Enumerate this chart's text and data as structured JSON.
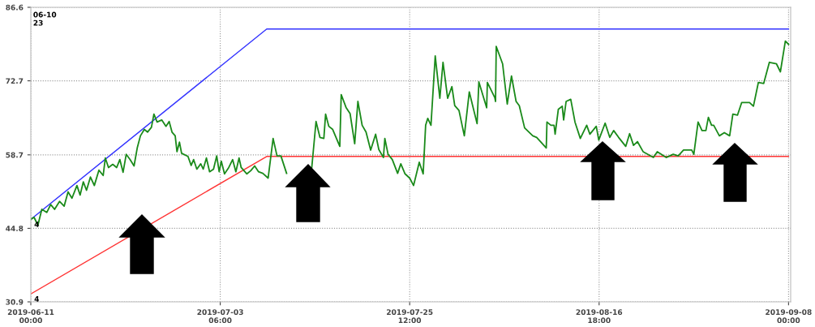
{
  "chart_data": {
    "type": "line",
    "xlim": [
      "2019-06-11T00:00",
      "2019-09-08T06:00"
    ],
    "ylim": [
      30.9,
      86.6
    ],
    "yticks": [
      30.9,
      44.8,
      58.7,
      72.7,
      86.6
    ],
    "xticks": [
      {
        "value": "2019-06-11T00:00",
        "label": "2019-06-11\n00:00"
      },
      {
        "value": "2019-07-03T06:00",
        "label": "2019-07-03\n06:00"
      },
      {
        "value": "2019-07-25T12:00",
        "label": "2019-07-25\n12:00"
      },
      {
        "value": "2019-08-16T18:00",
        "label": "2019-08-16\n18:00"
      },
      {
        "value": "2019-09-08T00:00",
        "label": "2019-09-08\n00:00"
      }
    ],
    "grid": true,
    "line_style": "solid",
    "marker": "none",
    "annotations": [
      "06-10\n23",
      {
        "text": "4",
        "x": "2019-06-11T00:00",
        "y": 46.5
      },
      {
        "text": "4",
        "x": "2019-06-11T00:00",
        "y": 32.4
      }
    ],
    "series": [
      {
        "color": "#3333ff",
        "x": [
          "2019-06-11T00:00",
          "2019-07-08T17:00",
          "2019-09-08T00:00"
        ],
        "values": [
          46.5,
          82.5,
          82.5
        ]
      },
      {
        "color": "#ff3333",
        "x": [
          "2019-06-11T00:00",
          "2019-07-08T17:00",
          "2019-09-08T00:00"
        ],
        "values": [
          32.4,
          58.4,
          58.4
        ]
      },
      {
        "color": "#1a8a1a",
        "x": [
          "2019-06-11T00:00",
          "2019-06-11T09:00",
          "2019-06-11T20:00",
          "2019-06-12T07:00",
          "2019-06-12T21:00",
          "2019-06-13T08:00",
          "2019-06-13T19:00",
          "2019-06-14T09:00",
          "2019-06-14T22:00",
          "2019-06-15T09:00",
          "2019-06-15T20:00",
          "2019-06-16T10:00",
          "2019-06-16T19:00",
          "2019-06-17T04:00",
          "2019-06-17T13:00",
          "2019-06-18T00:00",
          "2019-06-18T11:00",
          "2019-06-19T00:00",
          "2019-06-19T12:00",
          "2019-06-19T18:00",
          "2019-06-20T03:00",
          "2019-06-20T15:00",
          "2019-06-21T02:00",
          "2019-06-21T11:00",
          "2019-06-21T20:00",
          "2019-06-22T05:00",
          "2019-06-22T16:00",
          "2019-06-23T03:00",
          "2019-06-23T12:00",
          "2019-06-23T21:00",
          "2019-06-24T08:00",
          "2019-06-24T17:00",
          "2019-06-25T04:00",
          "2019-06-25T11:00",
          "2019-06-25T20:00",
          "2019-06-26T09:00",
          "2019-06-26T21:00",
          "2019-06-27T06:00",
          "2019-06-27T14:00",
          "2019-06-27T23:00",
          "2019-06-28T04:00",
          "2019-06-28T11:00",
          "2019-06-28T17:00",
          "2019-06-29T11:00",
          "2019-06-29T20:00",
          "2019-06-30T03:00",
          "2019-06-30T12:00",
          "2019-06-30T23:00",
          "2019-07-01T06:00",
          "2019-07-01T15:00",
          "2019-07-02T00:00",
          "2019-07-02T11:00",
          "2019-07-02T20:00",
          "2019-07-03T03:00",
          "2019-07-03T09:00",
          "2019-07-03T18:00",
          "2019-07-04T06:00",
          "2019-07-04T17:00",
          "2019-07-05T02:00",
          "2019-07-05T11:00",
          "2019-07-05T17:00",
          "2019-07-06T09:00",
          "2019-07-06T20:00",
          "2019-07-07T07:00",
          "2019-07-07T18:00",
          "2019-07-08T06:00",
          "2019-07-08T21:00",
          "2019-07-09T11:00",
          "2019-07-09T22:00",
          "2019-07-10T09:00",
          "2019-07-11T01:00",
          "2019-07-12T12:00",
          "2019-07-14T00:00",
          "2019-07-14T12:00",
          "2019-07-14T23:00",
          "2019-07-15T10:00",
          "2019-07-15T15:00",
          "2019-07-16T00:00",
          "2019-07-16T11:00",
          "2019-07-17T07:00",
          "2019-07-17T11:00",
          "2019-07-18T01:00",
          "2019-07-18T12:00",
          "2019-07-19T01:00",
          "2019-07-19T10:00",
          "2019-07-19T22:00",
          "2019-07-20T09:00",
          "2019-07-20T22:00",
          "2019-07-21T12:00",
          "2019-07-21T21:00",
          "2019-07-22T10:00",
          "2019-07-22T14:00",
          "2019-07-22T23:00",
          "2019-07-23T11:00",
          "2019-07-24T02:00",
          "2019-07-24T11:00",
          "2019-07-24T23:00",
          "2019-07-25T12:00",
          "2019-07-25T23:00",
          "2019-07-26T15:00",
          "2019-07-27T02:00",
          "2019-07-27T09:00",
          "2019-07-27T15:00",
          "2019-07-28T00:00",
          "2019-07-28T12:00",
          "2019-07-29T01:00",
          "2019-07-29T10:00",
          "2019-07-29T23:00",
          "2019-07-30T11:00",
          "2019-07-30T19:00",
          "2019-07-31T07:00",
          "2019-07-31T22:00",
          "2019-08-01T12:00",
          "2019-08-02T10:00",
          "2019-08-02T15:00",
          "2019-08-03T13:00",
          "2019-08-03T15:00",
          "2019-08-04T12:00",
          "2019-08-04T14:00",
          "2019-08-04T16:00",
          "2019-08-05T10:00",
          "2019-08-05T23:00",
          "2019-08-06T11:00",
          "2019-08-07T00:00",
          "2019-08-07T09:00",
          "2019-08-08T00:00",
          "2019-08-08T23:00",
          "2019-08-09T10:00",
          "2019-08-10T13:00",
          "2019-08-10T15:00",
          "2019-08-11T02:00",
          "2019-08-11T11:00",
          "2019-08-11T14:00",
          "2019-08-11T23:00",
          "2019-08-12T10:00",
          "2019-08-12T14:00",
          "2019-08-12T21:00",
          "2019-08-13T10:00",
          "2019-08-13T22:00",
          "2019-08-14T13:00",
          "2019-08-15T07:00",
          "2019-08-15T16:00",
          "2019-08-16T10:00",
          "2019-08-16T17:00",
          "2019-08-17T11:00",
          "2019-08-18T00:00",
          "2019-08-18T11:00",
          "2019-08-19T01:00",
          "2019-08-19T21:00",
          "2019-08-20T08:00",
          "2019-08-20T19:00",
          "2019-08-21T06:00",
          "2019-08-21T22:00",
          "2019-08-23T03:00",
          "2019-08-23T14:00",
          "2019-08-24T15:00",
          "2019-08-25T11:00",
          "2019-08-26T01:00",
          "2019-08-26T16:00",
          "2019-08-27T15:00",
          "2019-08-27T21:00",
          "2019-08-28T09:00",
          "2019-08-28T20:00",
          "2019-08-29T07:00",
          "2019-08-29T14:00",
          "2019-08-29T23:00",
          "2019-08-30T05:00",
          "2019-08-30T21:00",
          "2019-08-31T11:00",
          "2019-09-01T02:00",
          "2019-09-01T11:00",
          "2019-09-02T00:00",
          "2019-09-02T12:00",
          "2019-09-03T10:00",
          "2019-09-03T21:00",
          "2019-09-04T11:00",
          "2019-09-05T02:00",
          "2019-09-05T18:00",
          "2019-09-06T14:00",
          "2019-09-07T01:00",
          "2019-09-07T15:00",
          "2019-09-08T00:00"
        ],
        "values": [
          46.5,
          46.9,
          45.4,
          48.4,
          47.8,
          49.3,
          48.4,
          49.9,
          49.0,
          51.7,
          50.5,
          52.9,
          51.1,
          53.6,
          52.0,
          54.5,
          52.9,
          55.8,
          54.8,
          58.1,
          56.3,
          56.9,
          56.3,
          57.8,
          55.4,
          58.8,
          57.8,
          56.6,
          60.0,
          62.3,
          63.5,
          63.0,
          63.9,
          66.4,
          64.9,
          65.3,
          64.1,
          65.0,
          63.0,
          62.3,
          59.3,
          61.1,
          59.0,
          58.4,
          56.7,
          57.8,
          56.0,
          57.0,
          56.0,
          58.1,
          55.5,
          56.0,
          58.5,
          55.5,
          57.5,
          55.1,
          56.3,
          57.8,
          55.5,
          58.1,
          56.3,
          55.1,
          55.7,
          56.6,
          55.5,
          55.2,
          54.3,
          61.8,
          58.5,
          58.5,
          55.2,
          null,
          56.3,
          65.0,
          62.0,
          61.8,
          66.4,
          64.1,
          63.5,
          60.3,
          70.1,
          67.6,
          66.5,
          60.8,
          68.8,
          64.3,
          63.0,
          59.6,
          62.6,
          59.7,
          58.2,
          61.8,
          58.8,
          57.8,
          55.2,
          57.0,
          55.1,
          54.3,
          52.9,
          57.3,
          55.1,
          64.3,
          65.6,
          64.3,
          77.4,
          69.4,
          76.2,
          69.4,
          71.6,
          68.0,
          67.1,
          62.3,
          70.6,
          64.6,
          72.5,
          67.6,
          72.4,
          69.5,
          68.8,
          79.2,
          75.9,
          68.3,
          73.6,
          68.8,
          68.0,
          63.8,
          62.3,
          62.0,
          60.0,
          64.9,
          64.3,
          64.3,
          62.6,
          67.3,
          67.9,
          65.3,
          68.8,
          69.2,
          64.9,
          61.8,
          64.3,
          62.6,
          64.1,
          61.5,
          64.7,
          62.0,
          63.3,
          62.0,
          60.3,
          62.7,
          60.5,
          61.2,
          59.3,
          58.2,
          59.3,
          58.2,
          58.8,
          58.5,
          59.6,
          59.6,
          58.8,
          64.9,
          63.3,
          63.3,
          65.8,
          64.3,
          64.3,
          62.3,
          62.9,
          62.3,
          66.4,
          66.2,
          68.6,
          68.6,
          67.9,
          72.4,
          72.2,
          76.2,
          75.9,
          74.4,
          80.2,
          79.6
        ]
      }
    ]
  }
}
